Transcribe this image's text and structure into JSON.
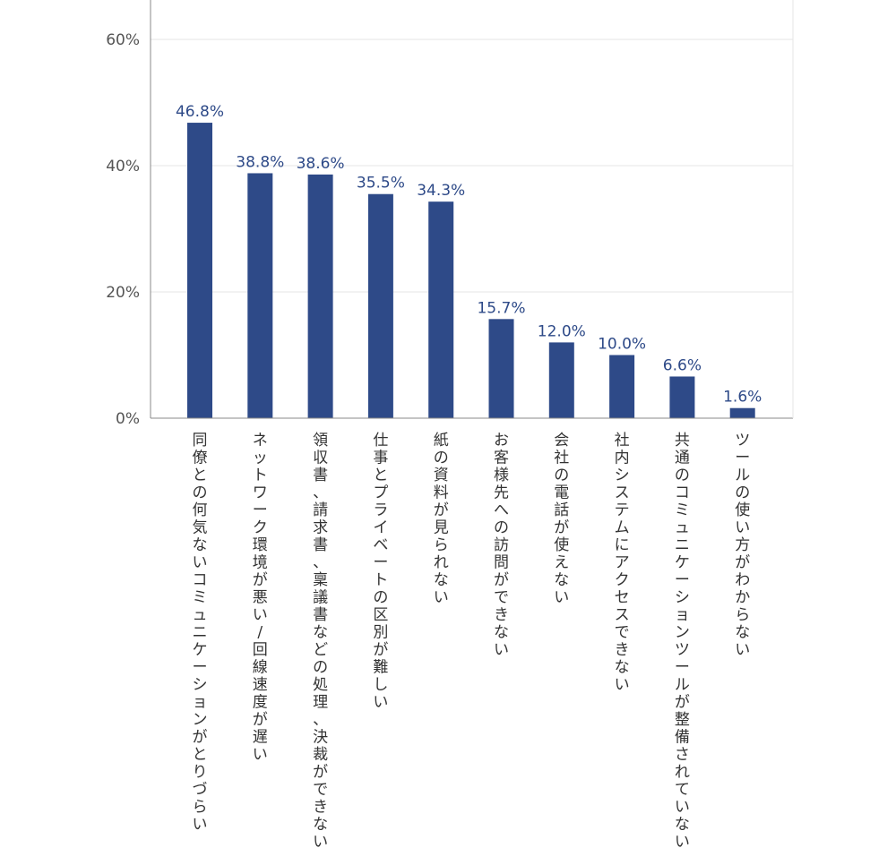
{
  "chart_data": {
    "type": "bar",
    "categories": [
      "同僚との何気ないコミュニケーションがとりづらい",
      "ネットワーク環境が悪い/回線速度が遅い",
      "領収書、請求書、稟議書などの処理、決裁ができない",
      "仕事とプライベートの区別が難しい",
      "紙の資料が見られない",
      "お客様先への訪問ができない",
      "会社の電話が使えない",
      "社内システムにアクセスできない",
      "共通のコミュニケーションツールが整備されていない",
      "ツールの使い方がわからない"
    ],
    "values": [
      46.8,
      38.8,
      38.6,
      35.5,
      34.3,
      15.7,
      12.0,
      10.0,
      6.6,
      1.6
    ],
    "value_labels": [
      "46.8%",
      "38.8%",
      "38.6%",
      "35.5%",
      "34.3%",
      "15.7%",
      "12.0%",
      "10.0%",
      "6.6%",
      "1.6%"
    ],
    "yticks": [
      0,
      20,
      40,
      60
    ],
    "ytick_labels": [
      "0%",
      "20%",
      "40%",
      "60%"
    ],
    "ylim": [
      0,
      66
    ],
    "grid": true,
    "colors": {
      "bar": "#2e4a88",
      "grid": "#e6e6e6",
      "axis": "#888888"
    }
  }
}
